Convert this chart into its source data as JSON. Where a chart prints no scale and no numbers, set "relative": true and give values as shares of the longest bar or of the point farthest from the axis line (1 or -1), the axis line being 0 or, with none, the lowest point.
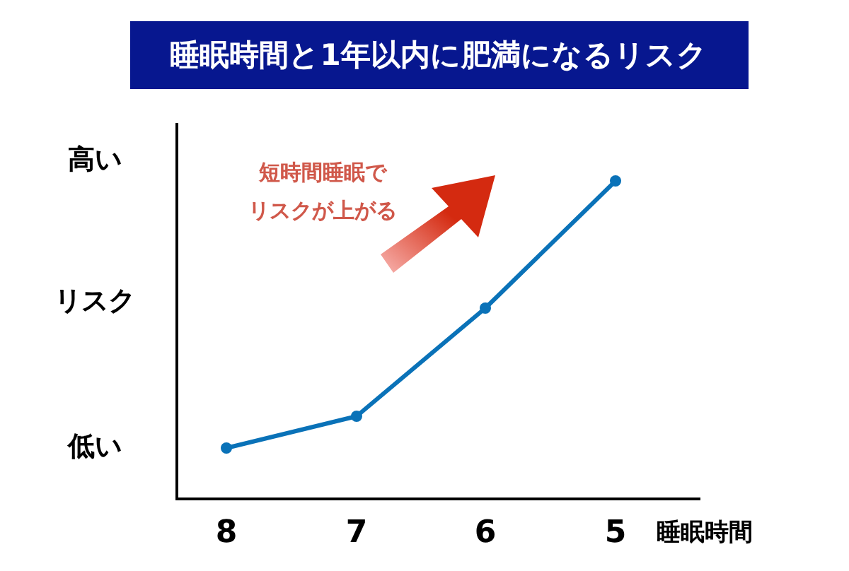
{
  "chart_data": {
    "type": "line",
    "title": "睡眠時間と1年以内に肥満になるリスク",
    "xlabel": "睡眠時間",
    "categories": [
      "8",
      "7",
      "6",
      "5"
    ],
    "relative": true,
    "marker": "circle",
    "line_style": "solid",
    "series": [
      {
        "color": "#0a72b8",
        "values": [
          0.16,
          0.26,
          0.6,
          1
        ]
      }
    ],
    "annotations": [
      "高い",
      "リスク",
      "低い",
      "短時間睡眠で",
      "リスクが上がる"
    ]
  }
}
